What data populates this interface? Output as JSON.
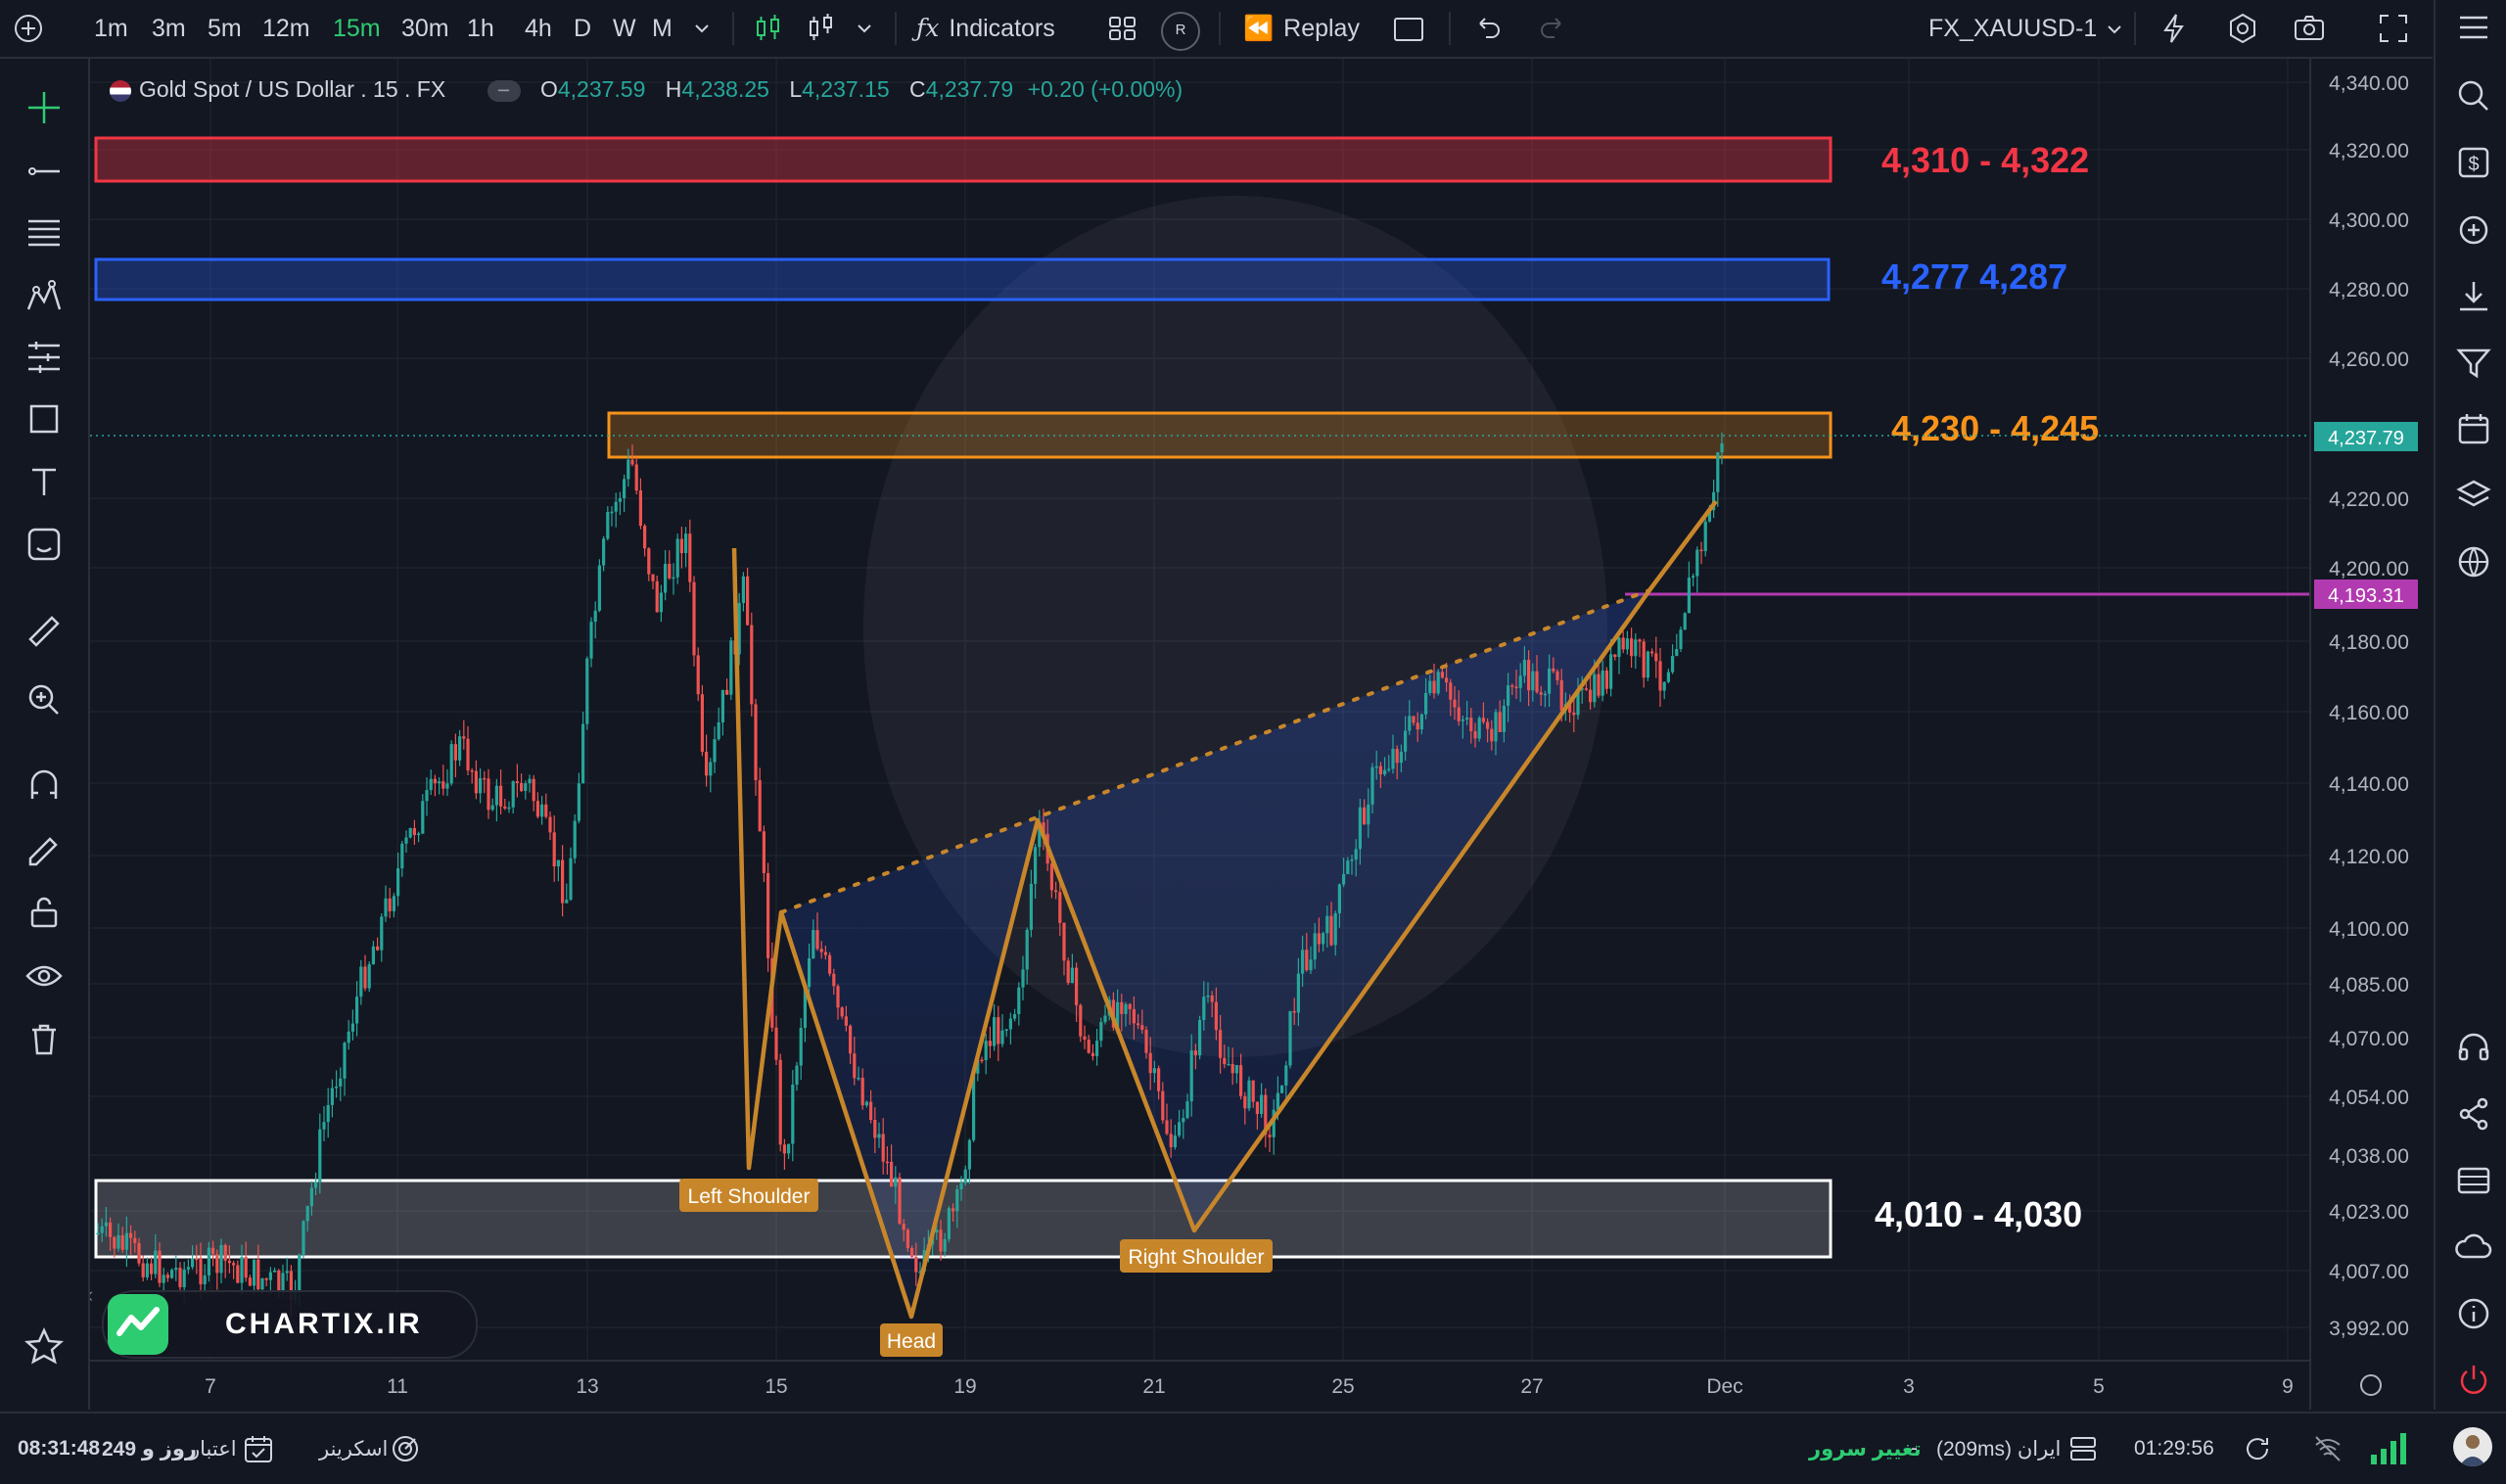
{
  "toolbar": {
    "timeframes": [
      "1m",
      "3m",
      "5m",
      "12m",
      "15m",
      "30m",
      "1h",
      "4h",
      "D",
      "W",
      "M"
    ],
    "active_timeframe": "15m",
    "indicators_label": "Indicators",
    "replay_label": "Replay",
    "alert_badge": "R",
    "symbol": "FX_XAUUSD-1"
  },
  "legend": {
    "title": "Gold Spot / US Dollar . 15 . FX",
    "o_label": "O",
    "o": "4,237.59",
    "h_label": "H",
    "h": "4,238.25",
    "l_label": "L",
    "l": "4,237.15",
    "c_label": "C",
    "c": "4,237.79",
    "change": "+0.20 (+0.00%)"
  },
  "chart_data": {
    "type": "candlestick",
    "title": "Gold Spot / US Dollar . 15 . FX",
    "y_ticks": [
      "4,340.00",
      "4,320.00",
      "4,300.00",
      "4,280.00",
      "4,260.00",
      "4,220.00",
      "4,200.00",
      "4,180.00",
      "4,160.00",
      "4,140.00",
      "4,120.00",
      "4,100.00",
      "4,085.00",
      "4,070.00",
      "4,054.00",
      "4,038.00",
      "4,023.00",
      "4,007.00",
      "3,992.00"
    ],
    "x_ticks": [
      "7",
      "11",
      "13",
      "15",
      "19",
      "21",
      "25",
      "27",
      "Dec",
      "3",
      "5",
      "9"
    ],
    "current_price": "4,237.79",
    "marker_price": "4,193.31",
    "zones": [
      {
        "label": "4,310 - 4,322",
        "low": 4310,
        "high": 4322,
        "color": "#f23645"
      },
      {
        "label": "4,277 4,287",
        "low": 4277,
        "high": 4287,
        "color": "#2962ff"
      },
      {
        "label": "4,230 - 4,245",
        "low": 4230,
        "high": 4245,
        "color": "#f7931a"
      },
      {
        "label": "4,010 - 4,030",
        "low": 4010,
        "high": 4030,
        "color": "#ffffff"
      }
    ],
    "pattern": {
      "name": "inverse head and shoulders",
      "labels": [
        "Left Shoulder",
        "Head",
        "Right Shoulder"
      ],
      "color": "#c8862a"
    },
    "up_color": "#26a69a",
    "down_color": "#ef5350"
  },
  "watermark": "CHARTIX.IR",
  "status": {
    "credit_time": "08:31:48",
    "credit_text": "249 روز و",
    "credit_label": "اعتبار",
    "screener": "اسکرینر",
    "server_change": "تغییر سرور",
    "dash": "-",
    "server": "(209ms) ایران",
    "clock": "01:29:56"
  }
}
